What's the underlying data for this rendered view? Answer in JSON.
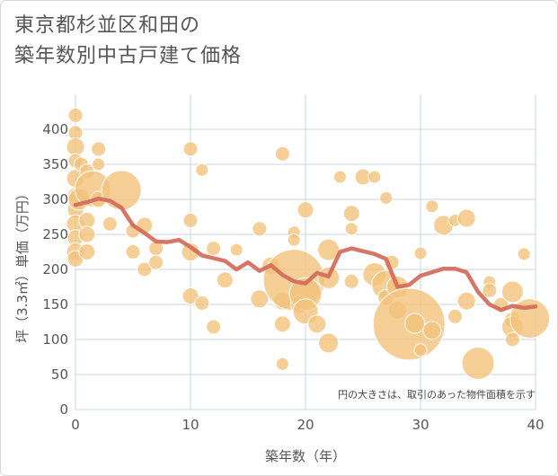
{
  "chart_data": {
    "type": "scatter",
    "title_lines": [
      "東京都杉並区和田の",
      "築年数別中古戸建て価格"
    ],
    "xlabel": "築年数（年）",
    "ylabel": "坪（3.3㎡）単価（万円）",
    "xlim": [
      0,
      40
    ],
    "ylim": [
      0,
      450
    ],
    "x_ticks": [
      0,
      10,
      20,
      30,
      40
    ],
    "y_ticks": [
      0,
      50,
      100,
      150,
      200,
      250,
      300,
      350,
      400
    ],
    "grid": true,
    "note": "円の大きさは、取引のあった物件面積を示す",
    "colors": {
      "bubble": "#f3c27a",
      "bubble_edge": "#ffffff",
      "line": "#d46a5a",
      "grid": "#c8d6e0"
    },
    "series": [
      {
        "kind": "bubble",
        "points": [
          {
            "x": 0,
            "y": 420,
            "s": 8
          },
          {
            "x": 0,
            "y": 395,
            "s": 8
          },
          {
            "x": 0,
            "y": 375,
            "s": 10
          },
          {
            "x": 0,
            "y": 355,
            "s": 8
          },
          {
            "x": 0,
            "y": 330,
            "s": 10
          },
          {
            "x": 0,
            "y": 305,
            "s": 9
          },
          {
            "x": 0,
            "y": 285,
            "s": 9
          },
          {
            "x": 0,
            "y": 265,
            "s": 10
          },
          {
            "x": 0,
            "y": 245,
            "s": 9
          },
          {
            "x": 0,
            "y": 225,
            "s": 10
          },
          {
            "x": 0,
            "y": 215,
            "s": 9
          },
          {
            "x": 0.3,
            "y": 300,
            "s": 12
          },
          {
            "x": 0.5,
            "y": 350,
            "s": 8
          },
          {
            "x": 1,
            "y": 270,
            "s": 9
          },
          {
            "x": 1,
            "y": 225,
            "s": 9
          },
          {
            "x": 1,
            "y": 340,
            "s": 8
          },
          {
            "x": 1,
            "y": 250,
            "s": 9
          },
          {
            "x": 1.5,
            "y": 315,
            "s": 20
          },
          {
            "x": 2,
            "y": 372,
            "s": 8
          },
          {
            "x": 2,
            "y": 350,
            "s": 7
          },
          {
            "x": 2,
            "y": 300,
            "s": 9
          },
          {
            "x": 3,
            "y": 265,
            "s": 8
          },
          {
            "x": 4,
            "y": 313,
            "s": 22
          },
          {
            "x": 5,
            "y": 255,
            "s": 8
          },
          {
            "x": 5,
            "y": 225,
            "s": 8
          },
          {
            "x": 6,
            "y": 263,
            "s": 9
          },
          {
            "x": 6,
            "y": 200,
            "s": 8
          },
          {
            "x": 7,
            "y": 230,
            "s": 8
          },
          {
            "x": 7,
            "y": 210,
            "s": 8
          },
          {
            "x": 10,
            "y": 372,
            "s": 8
          },
          {
            "x": 10,
            "y": 270,
            "s": 8
          },
          {
            "x": 10,
            "y": 225,
            "s": 10
          },
          {
            "x": 10,
            "y": 162,
            "s": 9
          },
          {
            "x": 11,
            "y": 342,
            "s": 7
          },
          {
            "x": 11,
            "y": 152,
            "s": 8
          },
          {
            "x": 12,
            "y": 230,
            "s": 8
          },
          {
            "x": 12,
            "y": 118,
            "s": 8
          },
          {
            "x": 13,
            "y": 185,
            "s": 9
          },
          {
            "x": 14,
            "y": 228,
            "s": 7
          },
          {
            "x": 16,
            "y": 258,
            "s": 8
          },
          {
            "x": 16,
            "y": 158,
            "s": 10
          },
          {
            "x": 17,
            "y": 205,
            "s": 10
          },
          {
            "x": 18,
            "y": 365,
            "s": 8
          },
          {
            "x": 18,
            "y": 155,
            "s": 10
          },
          {
            "x": 18,
            "y": 122,
            "s": 9
          },
          {
            "x": 18,
            "y": 65,
            "s": 7
          },
          {
            "x": 19,
            "y": 253,
            "s": 7
          },
          {
            "x": 19,
            "y": 242,
            "s": 7
          },
          {
            "x": 19,
            "y": 185,
            "s": 34
          },
          {
            "x": 19.5,
            "y": 150,
            "s": 10
          },
          {
            "x": 20,
            "y": 285,
            "s": 9
          },
          {
            "x": 20,
            "y": 165,
            "s": 18
          },
          {
            "x": 20,
            "y": 140,
            "s": 14
          },
          {
            "x": 21,
            "y": 122,
            "s": 10
          },
          {
            "x": 22,
            "y": 228,
            "s": 12
          },
          {
            "x": 22,
            "y": 188,
            "s": 12
          },
          {
            "x": 22,
            "y": 95,
            "s": 11
          },
          {
            "x": 23,
            "y": 332,
            "s": 7
          },
          {
            "x": 24,
            "y": 280,
            "s": 9
          },
          {
            "x": 24,
            "y": 258,
            "s": 7
          },
          {
            "x": 24,
            "y": 183,
            "s": 8
          },
          {
            "x": 25,
            "y": 332,
            "s": 9
          },
          {
            "x": 26,
            "y": 332,
            "s": 7
          },
          {
            "x": 26,
            "y": 193,
            "s": 13
          },
          {
            "x": 27,
            "y": 302,
            "s": 7
          },
          {
            "x": 27,
            "y": 178,
            "s": 16
          },
          {
            "x": 27,
            "y": 160,
            "s": 9
          },
          {
            "x": 27.5,
            "y": 210,
            "s": 8
          },
          {
            "x": 28,
            "y": 175,
            "s": 12
          },
          {
            "x": 28,
            "y": 142,
            "s": 10
          },
          {
            "x": 29,
            "y": 122,
            "s": 40
          },
          {
            "x": 29.5,
            "y": 123,
            "s": 11
          },
          {
            "x": 30,
            "y": 223,
            "s": 7
          },
          {
            "x": 30,
            "y": 85,
            "s": 7
          },
          {
            "x": 31,
            "y": 113,
            "s": 10
          },
          {
            "x": 31,
            "y": 290,
            "s": 7
          },
          {
            "x": 32,
            "y": 263,
            "s": 11
          },
          {
            "x": 33,
            "y": 133,
            "s": 8
          },
          {
            "x": 33,
            "y": 270,
            "s": 7
          },
          {
            "x": 34,
            "y": 273,
            "s": 10
          },
          {
            "x": 34,
            "y": 155,
            "s": 10
          },
          {
            "x": 35,
            "y": 66,
            "s": 18
          },
          {
            "x": 36,
            "y": 182,
            "s": 7
          },
          {
            "x": 36,
            "y": 170,
            "s": 8
          },
          {
            "x": 37,
            "y": 150,
            "s": 8
          },
          {
            "x": 38,
            "y": 168,
            "s": 12
          },
          {
            "x": 38,
            "y": 128,
            "s": 9
          },
          {
            "x": 38,
            "y": 118,
            "s": 12
          },
          {
            "x": 38,
            "y": 100,
            "s": 8
          },
          {
            "x": 39,
            "y": 222,
            "s": 7
          },
          {
            "x": 39.5,
            "y": 130,
            "s": 22
          }
        ]
      },
      {
        "kind": "line",
        "points": [
          [
            0,
            292
          ],
          [
            1,
            296
          ],
          [
            2,
            301
          ],
          [
            3,
            298
          ],
          [
            4,
            288
          ],
          [
            5,
            263
          ],
          [
            6,
            252
          ],
          [
            7,
            240
          ],
          [
            8,
            239
          ],
          [
            9,
            242
          ],
          [
            10,
            232
          ],
          [
            11,
            220
          ],
          [
            12,
            216
          ],
          [
            13,
            212
          ],
          [
            14,
            200
          ],
          [
            15,
            210
          ],
          [
            16,
            198
          ],
          [
            17,
            206
          ],
          [
            18,
            192
          ],
          [
            19,
            183
          ],
          [
            20,
            180
          ],
          [
            21,
            195
          ],
          [
            22,
            190
          ],
          [
            23,
            225
          ],
          [
            24,
            230
          ],
          [
            25,
            226
          ],
          [
            26,
            222
          ],
          [
            27,
            215
          ],
          [
            28,
            175
          ],
          [
            29,
            178
          ],
          [
            30,
            191
          ],
          [
            31,
            196
          ],
          [
            32,
            201
          ],
          [
            33,
            201
          ],
          [
            34,
            196
          ],
          [
            35,
            168
          ],
          [
            36,
            150
          ],
          [
            37,
            142
          ],
          [
            38,
            148
          ],
          [
            39,
            145
          ],
          [
            40,
            147
          ]
        ]
      }
    ]
  }
}
